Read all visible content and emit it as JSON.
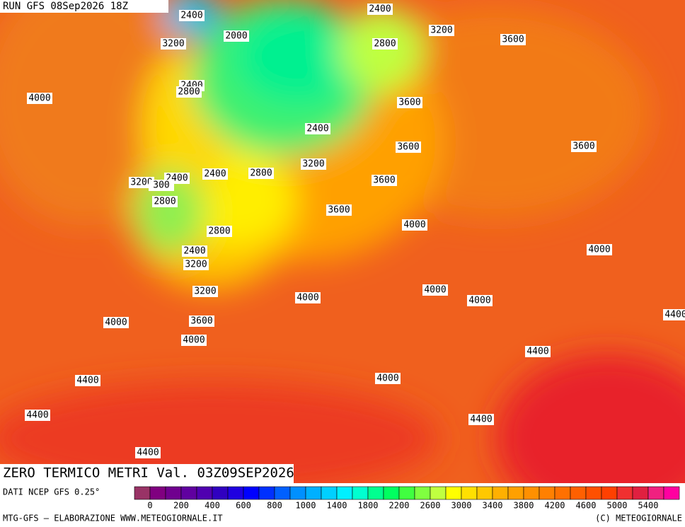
{
  "header": {
    "run": "RUN GFS 08Sep2026 18Z"
  },
  "map": {
    "contour_labels": [
      "2400",
      "2400",
      "3200",
      "3200",
      "2000",
      "2800",
      "3600",
      "4000",
      "2400",
      "2800",
      "3600",
      "2400",
      "3600",
      "3600",
      "3200",
      "2400",
      "2800",
      "2400",
      "3200",
      "300",
      "3600",
      "2800",
      "3600",
      "4000",
      "2800",
      "4000",
      "2400",
      "3200",
      "3200",
      "4000",
      "4000",
      "4000",
      "4000",
      "3600",
      "4000",
      "4400",
      "4400",
      "4000",
      "4400",
      "4400",
      "4400",
      "4400"
    ]
  },
  "footer": {
    "title": "ZERO TERMICO METRI Val. 03Z09SEP2026",
    "source": "DATI NCEP GFS 0.25°",
    "credit": "MTG-GFS – ELABORAZIONE WWW.METEOGIORNALE.IT",
    "copyright": "(C) METEOGIORNALE"
  },
  "legend": {
    "labels": [
      0,
      200,
      400,
      600,
      800,
      1000,
      1400,
      1800,
      2200,
      2600,
      3000,
      3400,
      3800,
      4200,
      4600,
      5000,
      5400
    ],
    "colors": [
      "#993366",
      "#800080",
      "#70008f",
      "#6000a0",
      "#5000b0",
      "#3000c0",
      "#2000e0",
      "#0000ff",
      "#0030ff",
      "#0060ff",
      "#0090ff",
      "#00b0ff",
      "#00d0ff",
      "#00f0ff",
      "#00ffd0",
      "#00ff90",
      "#00ff60",
      "#40ff40",
      "#80ff40",
      "#c0ff40",
      "#ffff00",
      "#ffe000",
      "#ffc800",
      "#ffb000",
      "#ffa000",
      "#ff9000",
      "#ff8000",
      "#ff7000",
      "#ff6000",
      "#ff5000",
      "#ff4000",
      "#f03030",
      "#e02040",
      "#f02080",
      "#ff00a0"
    ]
  }
}
